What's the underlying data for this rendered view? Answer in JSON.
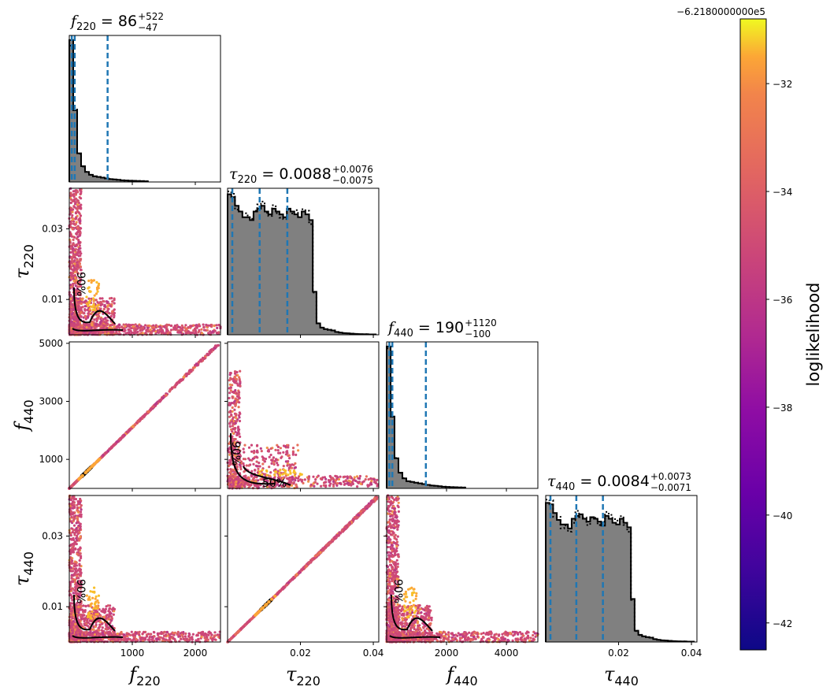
{
  "chart_data": {
    "type": "corner",
    "parameters": [
      {
        "key": "f220",
        "sym": "f",
        "sub": "220",
        "range": [
          0,
          2400
        ],
        "ticks": [
          1000,
          2000
        ],
        "tick_labels": [
          "1000",
          "2000"
        ]
      },
      {
        "key": "tau220",
        "sym": "τ",
        "sub": "220",
        "range": [
          0,
          0.0415
        ],
        "ticks": [
          0.01,
          0.02,
          0.03,
          0.04
        ],
        "tick_labels": [
          "0.01",
          "0.02",
          "0.03",
          "0.04"
        ]
      },
      {
        "key": "f440",
        "sym": "f",
        "sub": "440",
        "range": [
          0,
          5050
        ],
        "ticks": [
          1000,
          2000,
          3000,
          4000,
          5000
        ],
        "tick_labels": [
          "1000",
          "2000",
          "3000",
          "4000",
          "5000"
        ]
      },
      {
        "key": "tau440",
        "sym": "τ",
        "sub": "440",
        "range": [
          0,
          0.0415
        ],
        "ticks": [
          0.01,
          0.02,
          0.03,
          0.04
        ],
        "tick_labels": [
          "0.01",
          "0.02",
          "0.03",
          "0.04"
        ]
      }
    ],
    "x_tick_labels": {
      "f220": [
        "1000",
        "2000"
      ],
      "tau220": [
        "0.02",
        "0.04"
      ],
      "f440": [
        "2000",
        "4000"
      ],
      "tau440": [
        "0.02",
        "0.04"
      ]
    },
    "y_tick_labels": {
      "tau220": [
        "0.01",
        "0.03"
      ],
      "f440": [
        "1000",
        "3000",
        "5000"
      ],
      "tau440": [
        "0.01",
        "0.03"
      ]
    },
    "titles": [
      {
        "text": "86",
        "sup": "+522",
        "sub": "−47"
      },
      {
        "text": "0.0088",
        "sup": "+0.0076",
        "sub": "−0.0075"
      },
      {
        "text": "190",
        "sup": "+1120",
        "sub": "−100"
      },
      {
        "text": "0.0084",
        "sup": "+0.0073",
        "sub": "−0.0071"
      }
    ],
    "medians": [
      86,
      0.0088,
      190,
      0.0084
    ],
    "lower_quantiles": [
      39,
      0.0013,
      90,
      0.0013
    ],
    "upper_quantiles": [
      608,
      0.0164,
      1310,
      0.0157
    ],
    "hist_f_decay": {
      "f220": [
        0.99,
        0.5,
        0.2,
        0.11,
        0.07,
        0.05,
        0.04,
        0.035,
        0.03,
        0.025,
        0.02,
        0.018,
        0.015,
        0.012,
        0.01,
        0.009,
        0.008,
        0.007,
        0.006,
        0.005
      ],
      "f440": [
        0.99,
        0.5,
        0.21,
        0.11,
        0.07,
        0.05,
        0.045,
        0.04,
        0.035,
        0.03,
        0.025,
        0.02,
        0.018,
        0.015,
        0.012,
        0.01,
        0.009,
        0.008,
        0.007,
        0.006
      ]
    },
    "hist_tau": [
      0.98,
      0.96,
      0.9,
      0.86,
      0.82,
      0.82,
      0.8,
      0.86,
      0.88,
      0.9,
      0.86,
      0.84,
      0.88,
      0.86,
      0.84,
      0.82,
      0.88,
      0.86,
      0.84,
      0.82,
      0.86,
      0.84,
      0.8,
      0.3,
      0.08,
      0.05,
      0.04,
      0.035,
      0.03,
      0.02,
      0.015,
      0.012,
      0.01,
      0.008,
      0.006,
      0.005,
      0.004,
      0.004,
      0.003,
      0.003
    ],
    "contour_levels": [
      "50%",
      "90%"
    ],
    "colorbar": {
      "label": "loglikelihood",
      "offset_text": "−6.2180000000e5",
      "range": [
        -42.5,
        -30.8
      ],
      "ticks": [
        -42,
        -40,
        -38,
        -36,
        -34,
        -32
      ],
      "tick_labels": [
        "−42",
        "−40",
        "−38",
        "−36",
        "−34",
        "−32"
      ],
      "colormap": "plasma"
    },
    "colors": {
      "hist_fill": "#808080",
      "quantile_line": "#1f77b4",
      "contour": "#000000"
    }
  }
}
